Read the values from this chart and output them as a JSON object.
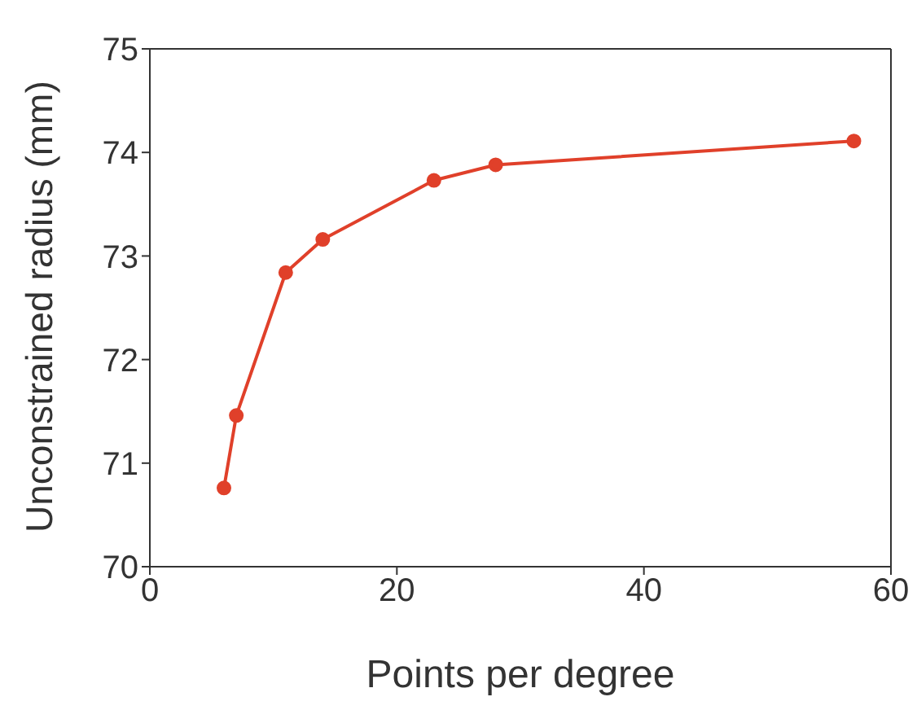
{
  "chart_data": {
    "type": "line",
    "xlabel": "Points per degree",
    "ylabel": "Unconstrained radius (mm)",
    "x": [
      6,
      7,
      11,
      14,
      23,
      28,
      57
    ],
    "series": [
      {
        "color": "#e0402a",
        "values": [
          70.76,
          71.46,
          72.84,
          73.16,
          73.73,
          73.88,
          74.11
        ]
      }
    ],
    "xlim": [
      0,
      60
    ],
    "xticks": [
      0,
      20,
      40,
      60
    ],
    "ylim": [
      70,
      75
    ],
    "yticks": [
      70,
      71,
      72,
      73,
      74,
      75
    ],
    "grid": false,
    "legend": false,
    "marker": "circle",
    "line_style": "solid"
  }
}
